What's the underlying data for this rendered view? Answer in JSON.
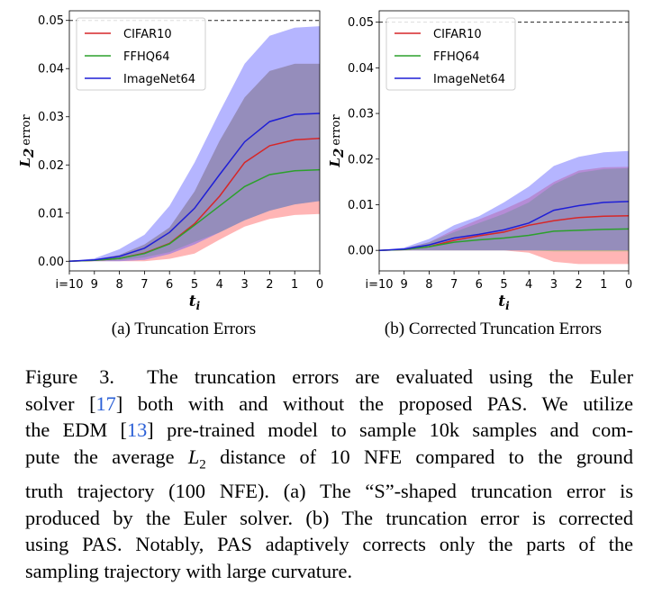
{
  "chart_data": [
    {
      "type": "line",
      "subtitle": "(a) Truncation Errors",
      "xlabel": "t",
      "xlabel_sub": "i",
      "ylabel": "error",
      "ylabel_prefix": "L",
      "ylabel_sub": "2",
      "x_tick_labels": [
        "i=10",
        "9",
        "8",
        "7",
        "6",
        "5",
        "4",
        "3",
        "2",
        "1",
        "0"
      ],
      "ylim": [
        -0.002,
        0.052
      ],
      "y_ticks": [
        "0.00",
        "0.01",
        "0.02",
        "0.03",
        "0.04",
        "0.05"
      ],
      "reference_line": 0.05,
      "legend_position": "top-left",
      "series": [
        {
          "name": "CIFAR10",
          "color": "#d62728",
          "values": [
            0,
            0.0002,
            0.0006,
            0.0017,
            0.0037,
            0.0078,
            0.0135,
            0.0205,
            0.024,
            0.0252,
            0.0255
          ],
          "lower": [
            0,
            0,
            0,
            0,
            0.0005,
            0.0016,
            0.0045,
            0.0072,
            0.0088,
            0.0096,
            0.0098
          ],
          "upper": [
            0,
            0.0004,
            0.0013,
            0.0035,
            0.007,
            0.0145,
            0.025,
            0.034,
            0.0395,
            0.041,
            0.041
          ]
        },
        {
          "name": "FFHQ64",
          "color": "#2ca02c",
          "values": [
            0,
            0.0002,
            0.0006,
            0.0016,
            0.0036,
            0.0075,
            0.0115,
            0.0155,
            0.018,
            0.0188,
            0.019
          ],
          "lower": [
            0,
            0.0001,
            0.0002,
            0.0008,
            0.0019,
            0.004,
            0.006,
            0.0085,
            0.0105,
            0.0118,
            0.0125
          ],
          "upper": [
            0,
            0.0004,
            0.0013,
            0.0035,
            0.007,
            0.0145,
            0.025,
            0.034,
            0.0395,
            0.041,
            0.041
          ]
        },
        {
          "name": "ImageNet64",
          "color": "#1f1fd6",
          "values": [
            0,
            0.0003,
            0.001,
            0.0027,
            0.006,
            0.011,
            0.018,
            0.0248,
            0.029,
            0.0305,
            0.0307
          ],
          "lower": [
            0,
            0,
            0,
            0.0003,
            0.0015,
            0.0035,
            0.006,
            0.0085,
            0.0105,
            0.0118,
            0.0125
          ],
          "upper": [
            0,
            0.0006,
            0.0025,
            0.0055,
            0.0115,
            0.0205,
            0.031,
            0.041,
            0.0468,
            0.0485,
            0.0488
          ]
        }
      ]
    },
    {
      "type": "line",
      "subtitle": "(b) Corrected Truncation Errors",
      "xlabel": "t",
      "xlabel_sub": "i",
      "ylabel": "error",
      "ylabel_prefix": "L",
      "ylabel_sub": "2",
      "x_tick_labels": [
        "i=10",
        "9",
        "8",
        "7",
        "6",
        "5",
        "4",
        "3",
        "2",
        "1",
        "0"
      ],
      "ylim": [
        -0.0045,
        0.0525
      ],
      "y_ticks": [
        "0.00",
        "0.01",
        "0.02",
        "0.03",
        "0.04",
        "0.05"
      ],
      "reference_line": 0.05,
      "legend_position": "top-left",
      "series": [
        {
          "name": "CIFAR10",
          "color": "#d62728",
          "values": [
            0,
            0.0002,
            0.0008,
            0.0022,
            0.0032,
            0.004,
            0.0055,
            0.0065,
            0.0072,
            0.0075,
            0.0076
          ],
          "lower": [
            0,
            0,
            0,
            0,
            0,
            0,
            -0.0005,
            -0.0025,
            -0.003,
            -0.003,
            -0.003
          ],
          "upper": [
            0,
            0.0004,
            0.0018,
            0.0045,
            0.0068,
            0.009,
            0.0115,
            0.015,
            0.0175,
            0.0182,
            0.0183
          ]
        },
        {
          "name": "FFHQ64",
          "color": "#2ca02c",
          "values": [
            0,
            0.0002,
            0.0008,
            0.0018,
            0.0023,
            0.0027,
            0.0033,
            0.0042,
            0.0044,
            0.0046,
            0.0047
          ],
          "lower": [
            0,
            0,
            0,
            0,
            0,
            0,
            0,
            -0.0002,
            -0.0002,
            -0.0002,
            -0.0002
          ],
          "upper": [
            0,
            0.0004,
            0.0018,
            0.004,
            0.006,
            0.008,
            0.0105,
            0.0145,
            0.017,
            0.0178,
            0.018
          ]
        },
        {
          "name": "ImageNet64",
          "color": "#1f1fd6",
          "values": [
            0,
            0.0003,
            0.0012,
            0.0027,
            0.0035,
            0.0045,
            0.006,
            0.0088,
            0.0098,
            0.0105,
            0.0107
          ],
          "lower": [
            0,
            0,
            0,
            0,
            0,
            0,
            0,
            0,
            0,
            0,
            0
          ],
          "upper": [
            0,
            0.0006,
            0.0025,
            0.0055,
            0.0075,
            0.0105,
            0.014,
            0.0185,
            0.0205,
            0.0215,
            0.0218
          ]
        }
      ]
    }
  ],
  "caption": {
    "label": "Figure 3.",
    "text_1": "The truncation errors are evaluated using the Euler",
    "text_2a": "solver [",
    "ref_1": "17",
    "text_2b": "] both with and without the proposed PAS. We utilize",
    "text_3a": "the EDM [",
    "ref_2": "13",
    "text_3b": "] pre-trained model to sample 10k samples and com-",
    "text_4a": "pute the average ",
    "math_L": "L",
    "math_sub": "2",
    "text_4b": " distance of 10 NFE compared to the ground",
    "text_5": "truth trajectory (100 NFE). (a) The “S”-shaped truncation error is",
    "text_6": "produced by the Euler solver. (b) The truncation error is corrected",
    "text_7": "using PAS. Notably, PAS adaptively corrects only the parts of the",
    "text_8": "sampling trajectory with large curvature."
  },
  "colors": {
    "cifar_fill": "#ff5a5a",
    "ffhq_fill": "#7fb84a",
    "imagenet_fill": "#5a5aff"
  }
}
